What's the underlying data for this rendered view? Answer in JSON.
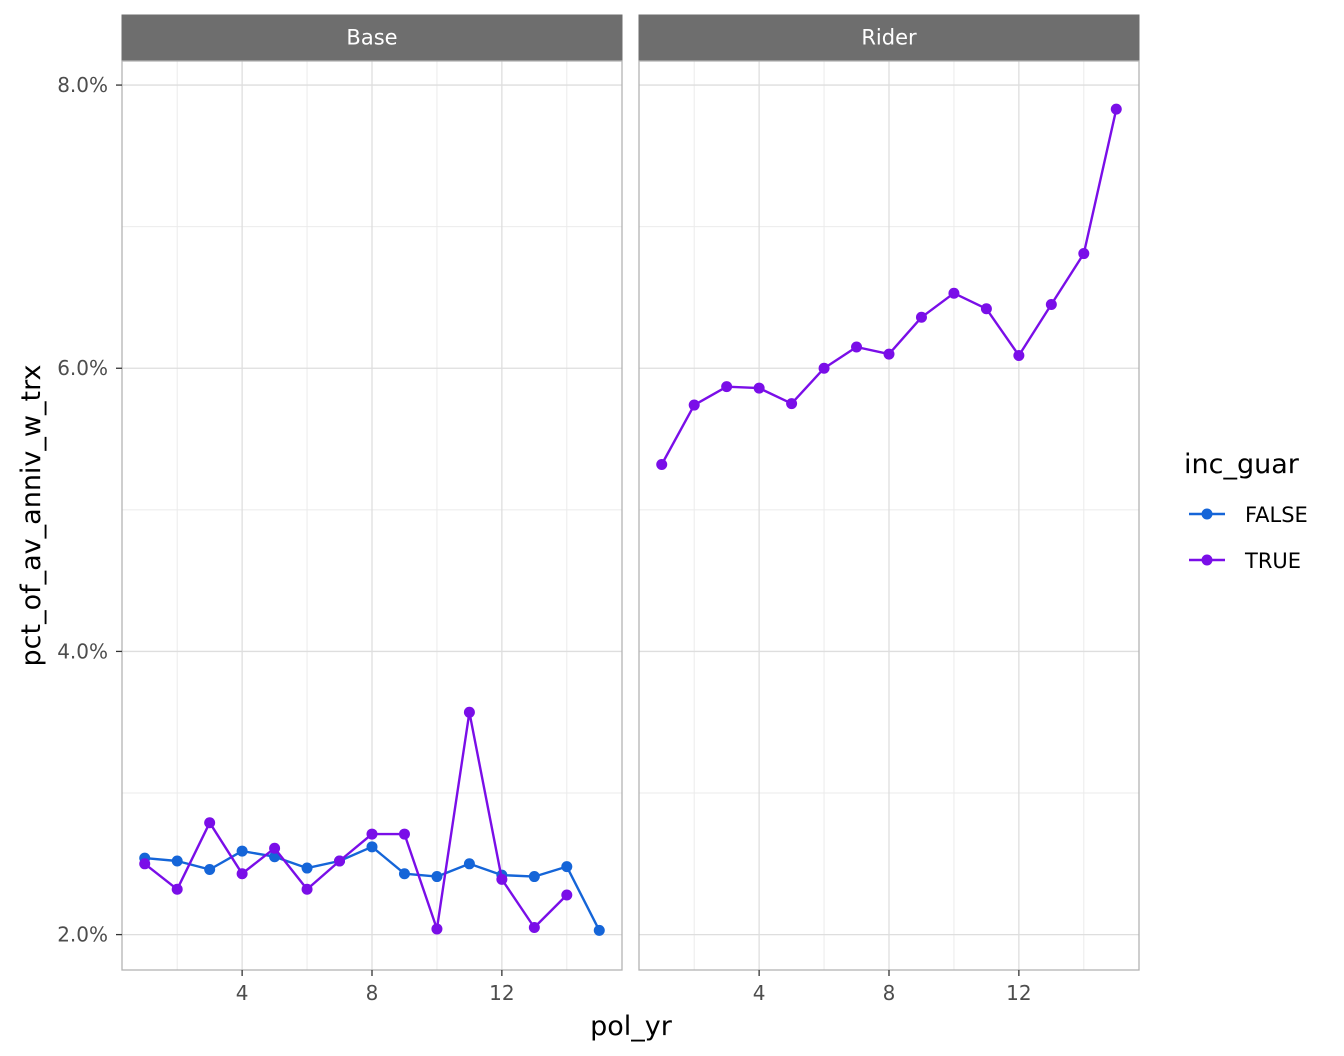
{
  "chart_data": {
    "type": "line",
    "xlabel": "pol_yr",
    "ylabel": "pct_of_av_anniv_w_trx",
    "x_ticks": [
      4,
      8,
      12
    ],
    "y_ticks": [
      0.02,
      0.04,
      0.06,
      0.08
    ],
    "y_tick_labels": [
      "2.0%",
      "4.0%",
      "6.0%",
      "8.0%"
    ],
    "xlim": [
      0.3,
      15.7
    ],
    "ylim": [
      0.0175,
      0.0817
    ],
    "grid": true,
    "legend": {
      "title": "inc_guar",
      "position": "right",
      "entries": [
        "FALSE",
        "TRUE"
      ]
    },
    "facets": [
      {
        "label": "Base",
        "series": [
          {
            "name": "FALSE",
            "color": "#1565d8",
            "points": [
              [
                1,
                0.0254
              ],
              [
                2,
                0.0252
              ],
              [
                3,
                0.0246
              ],
              [
                4,
                0.0259
              ],
              [
                5,
                0.0255
              ],
              [
                6,
                0.0247
              ],
              [
                7,
                0.0252
              ],
              [
                8,
                0.0262
              ],
              [
                9,
                0.0243
              ],
              [
                10,
                0.0241
              ],
              [
                11,
                0.025
              ],
              [
                12,
                0.0242
              ],
              [
                13,
                0.0241
              ],
              [
                14,
                0.0248
              ],
              [
                15,
                0.0203
              ]
            ]
          },
          {
            "name": "TRUE",
            "color": "#7a0ee8",
            "points": [
              [
                1,
                0.025
              ],
              [
                2,
                0.0232
              ],
              [
                3,
                0.0279
              ],
              [
                4,
                0.0243
              ],
              [
                5,
                0.0261
              ],
              [
                6,
                0.0232
              ],
              [
                7,
                0.0252
              ],
              [
                8,
                0.0271
              ],
              [
                9,
                0.0271
              ],
              [
                10,
                0.0204
              ],
              [
                11,
                0.0357
              ],
              [
                12,
                0.0239
              ],
              [
                13,
                0.0205
              ],
              [
                14,
                0.0228
              ]
            ]
          }
        ]
      },
      {
        "label": "Rider",
        "series": [
          {
            "name": "TRUE",
            "color": "#7a0ee8",
            "points": [
              [
                1,
                0.0532
              ],
              [
                2,
                0.0574
              ],
              [
                3,
                0.0587
              ],
              [
                4,
                0.0586
              ],
              [
                5,
                0.0575
              ],
              [
                6,
                0.06
              ],
              [
                7,
                0.0615
              ],
              [
                8,
                0.061
              ],
              [
                9,
                0.0636
              ],
              [
                10,
                0.0653
              ],
              [
                11,
                0.0642
              ],
              [
                12,
                0.0609
              ],
              [
                13,
                0.0645
              ],
              [
                14,
                0.0681
              ],
              [
                15,
                0.0783
              ]
            ]
          }
        ]
      }
    ]
  }
}
